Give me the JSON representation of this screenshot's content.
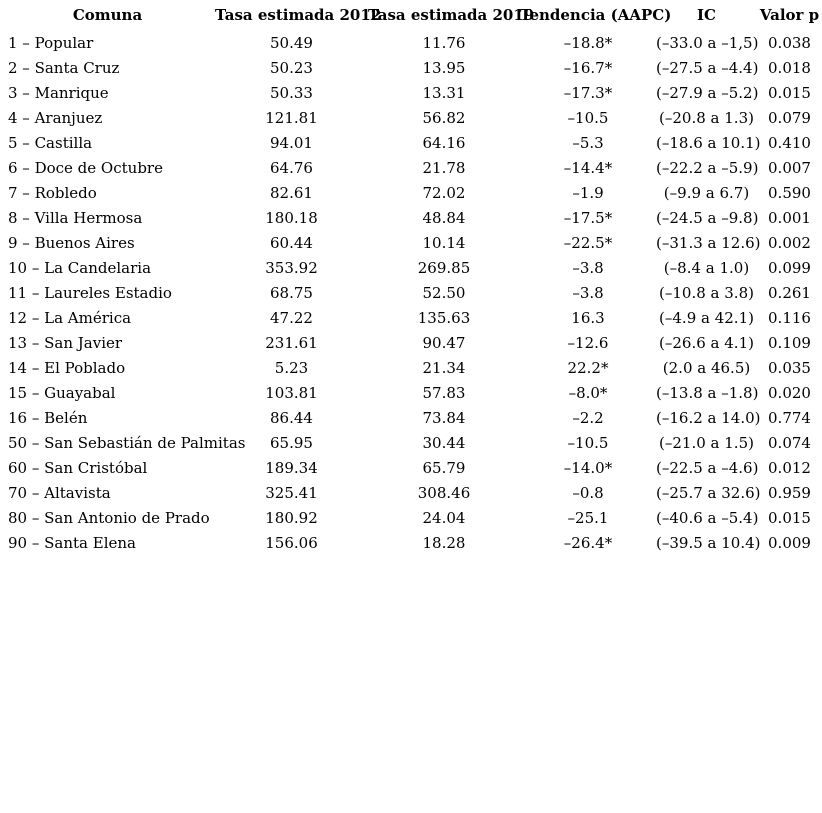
{
  "table": {
    "headers": [
      "Comuna",
      "Tasa estimada 2012",
      "Tasa estimada 2019",
      "Tendencia (AAPC)",
      "IC",
      "Valor p"
    ],
    "column_keys": [
      "comuna",
      "tasa-estimada-2012",
      "tasa-estimada-2019",
      "tendencia-aapc",
      "ic",
      "valor-p"
    ],
    "rows": [
      [
        "1 – Popular",
        "50.49",
        "11.76",
        "–18.8*",
        "(–33.0 a –1,5)",
        "0.038"
      ],
      [
        "2 – Santa Cruz",
        "50.23",
        "13.95",
        "–16.7*",
        "(–27.5 a –4.4)",
        "0.018"
      ],
      [
        "3 – Manrique",
        "50.33",
        "13.31",
        "–17.3*",
        "(–27.9 a –5.2)",
        "0.015"
      ],
      [
        "4 – Aranjuez",
        "121.81",
        "56.82",
        "–10.5",
        "(–20.8 a 1.3)",
        "0.079"
      ],
      [
        "5 – Castilla",
        "94.01",
        "64.16",
        "–5.3",
        "(–18.6 a 10.1)",
        "0.410"
      ],
      [
        "6 – Doce de Octubre",
        "64.76",
        "21.78",
        "–14.4*",
        "(–22.2 a –5.9)",
        "0.007"
      ],
      [
        "7 – Robledo",
        "82.61",
        "72.02",
        "–1.9",
        "(–9.9 a 6.7)",
        "0.590"
      ],
      [
        "8 – Villa Hermosa",
        "180.18",
        "48.84",
        "–17.5*",
        "(–24.5 a –9.8)",
        "0.001"
      ],
      [
        "9 – Buenos Aires",
        "60.44",
        "10.14",
        "–22.5*",
        "(–31.3 a 12.6)",
        "0.002"
      ],
      [
        "10 – La Candelaria",
        "353.92",
        "269.85",
        "–3.8",
        "(–8.4 a 1.0)",
        "0.099"
      ],
      [
        "11 – Laureles Estadio",
        "68.75",
        "52.50",
        "–3.8",
        "(–10.8 a 3.8)",
        "0.261"
      ],
      [
        "12 – La América",
        "47.22",
        "135.63",
        "16.3",
        "(–4.9 a 42.1)",
        "0.116"
      ],
      [
        "13 – San Javier",
        "231.61",
        "90.47",
        "–12.6",
        "(–26.6 a 4.1)",
        "0.109"
      ],
      [
        "14 – El Poblado",
        "5.23",
        "21.34",
        "22.2*",
        "(2.0 a 46.5)",
        "0.035"
      ],
      [
        "15 – Guayabal",
        "103.81",
        "57.83",
        "–8.0*",
        "(–13.8 a –1.8)",
        "0.020"
      ],
      [
        "16 – Belén",
        "86.44",
        "73.84",
        "–2.2",
        "(–16.2 a 14.0)",
        "0.774"
      ],
      [
        "50 – San Sebastián de Palmitas",
        "65.95",
        "30.44",
        "–10.5",
        "(–21.0 a 1.5)",
        "0.074"
      ],
      [
        "60 – San Cristóbal",
        "189.34",
        "65.79",
        "–14.0*",
        "(–22.5 a –4.6)",
        "0.012"
      ],
      [
        "70 – Altavista",
        "325.41",
        "308.46",
        "–0.8",
        "(–25.7 a 32.6)",
        "0.959"
      ],
      [
        "80 – San Antonio de Prado",
        "180.92",
        "24.04",
        "–25.1",
        "(–40.6 a –5.4)",
        "0.015"
      ],
      [
        "90 – Santa Elena",
        "156.06",
        "18.28",
        "–26.4*",
        "(–39.5 a 10.4)",
        "0.009"
      ]
    ]
  }
}
